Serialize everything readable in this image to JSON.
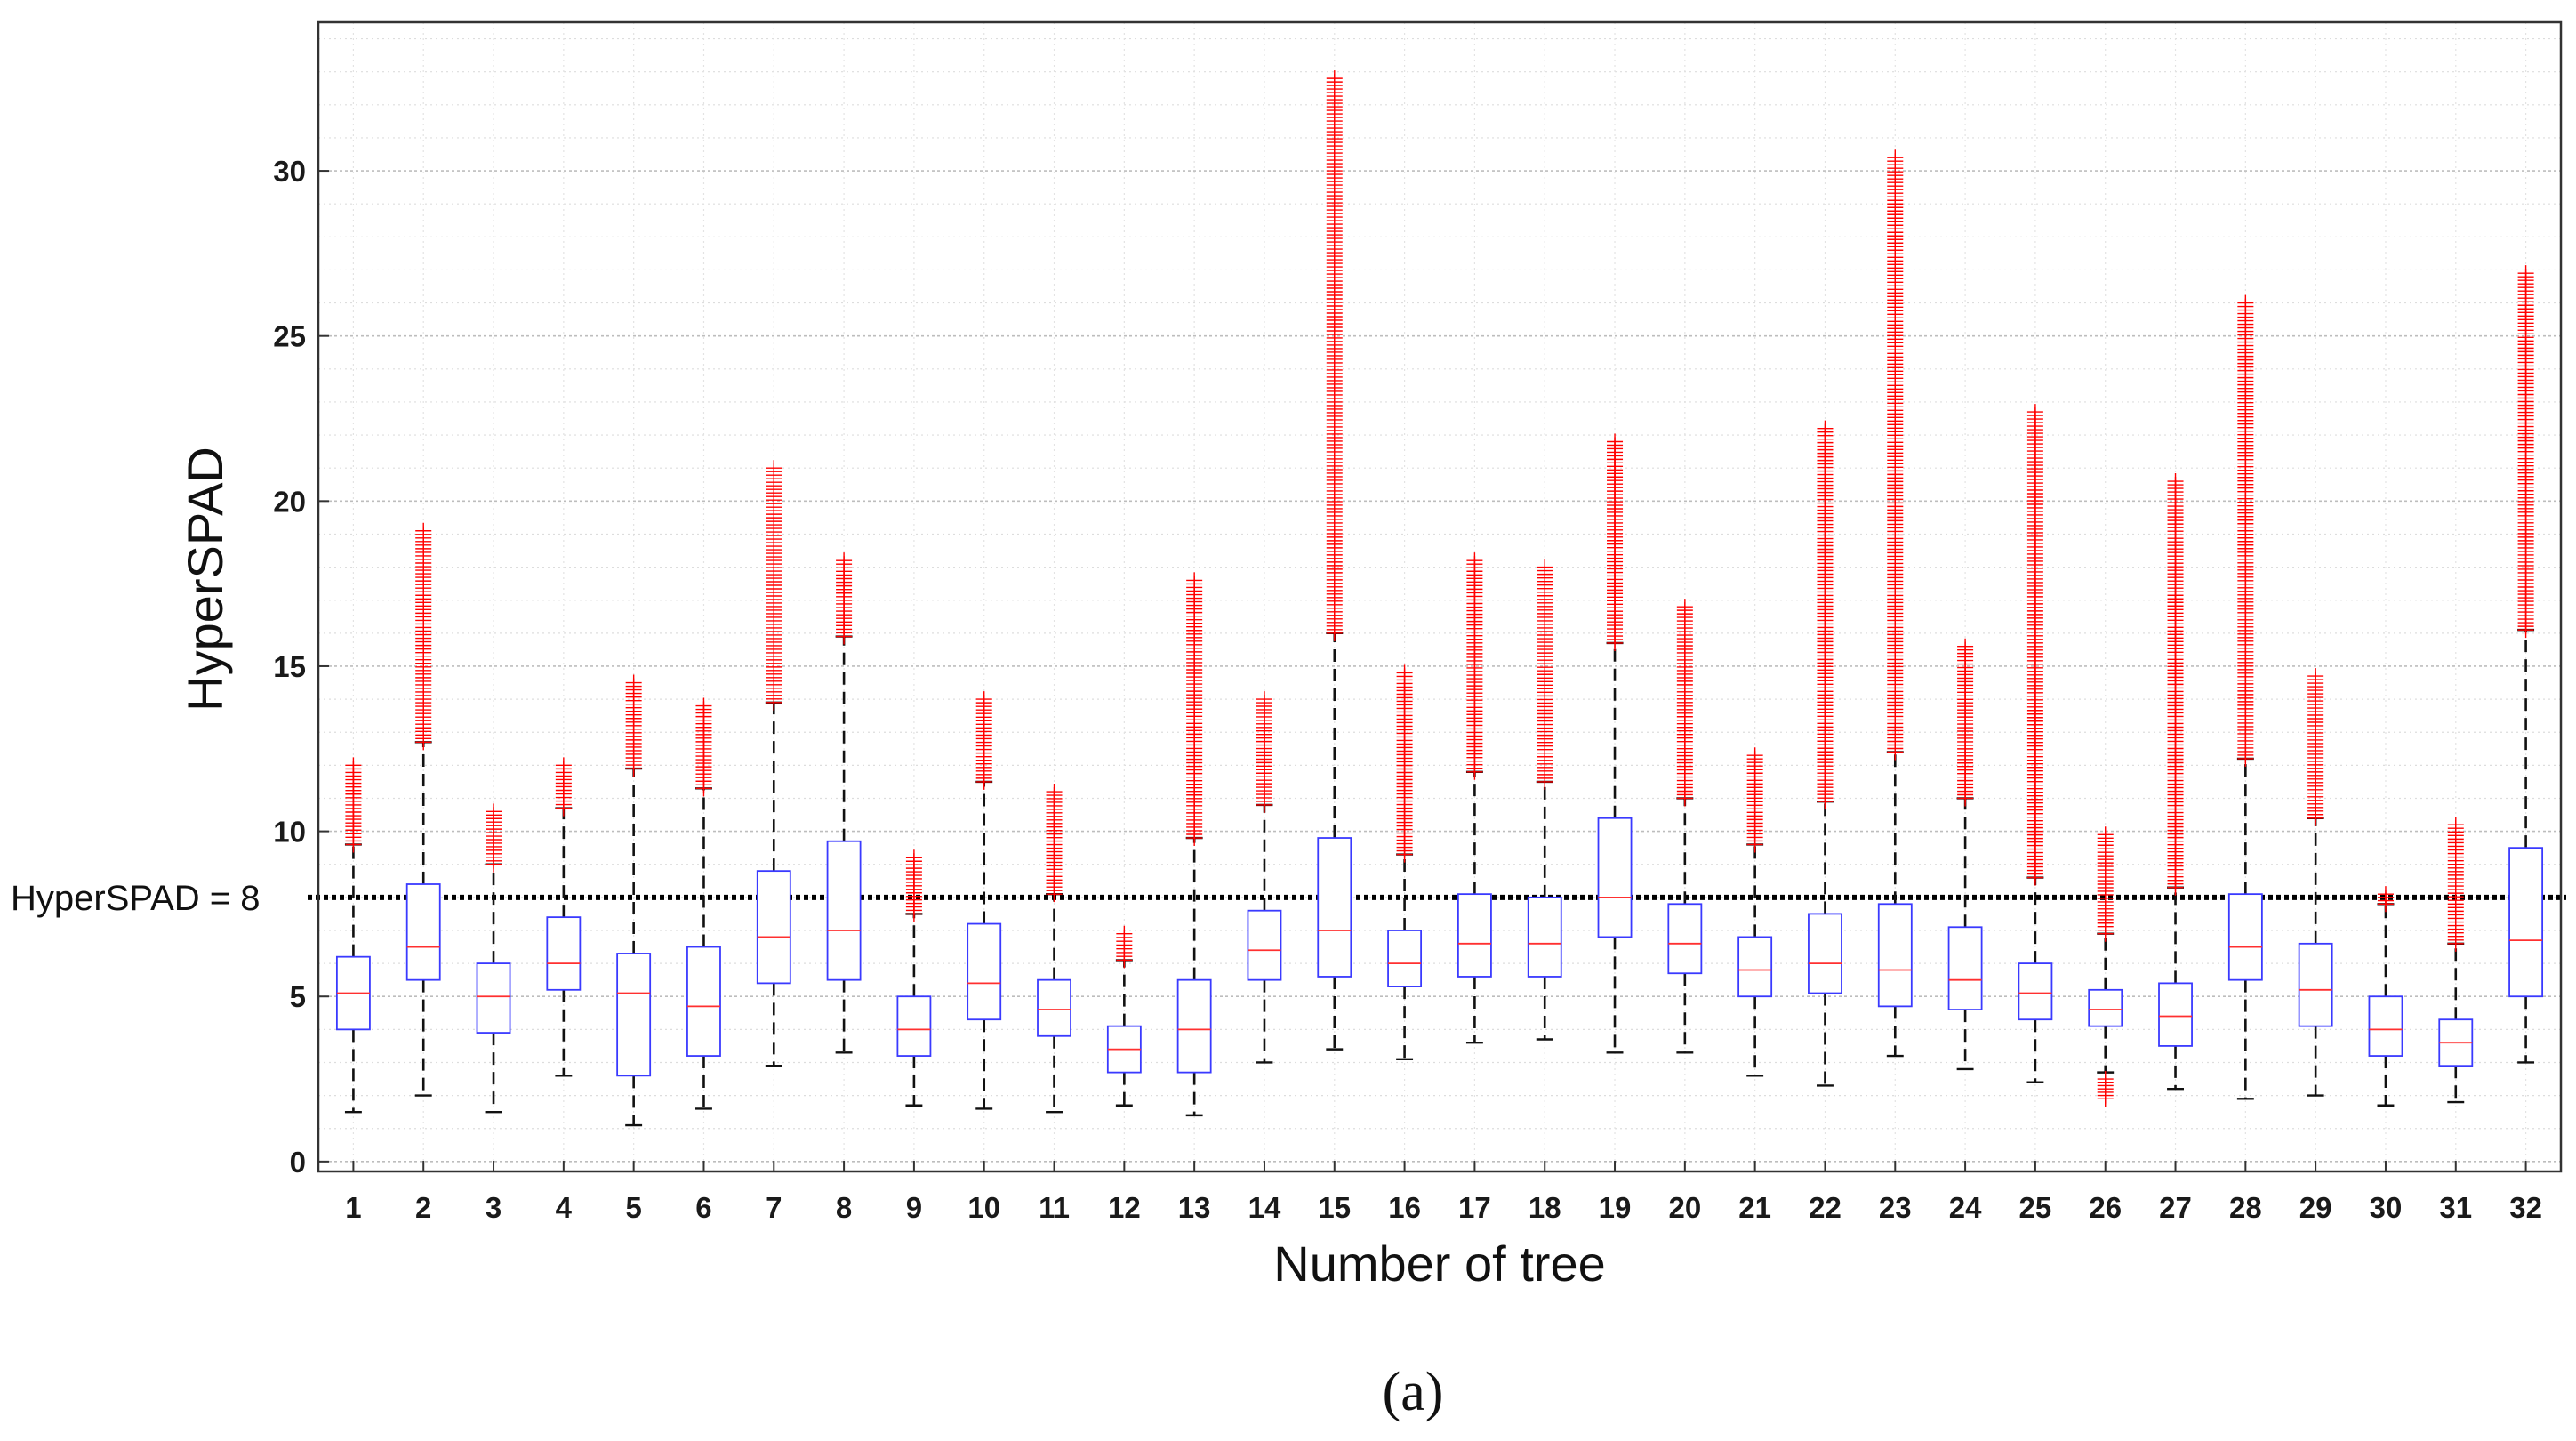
{
  "chart_data": {
    "type": "boxplot",
    "xlabel": "Number of tree",
    "ylabel": "HyperSPAD",
    "caption": "(a)",
    "ylim": [
      -0.3,
      34.5
    ],
    "yticks": [
      0,
      5,
      10,
      15,
      20,
      25,
      30
    ],
    "grid": "on (major and minor, dotted)",
    "reference_line": {
      "value": 8,
      "label": "HyperSPAD = 8",
      "style": "dotted black"
    },
    "colors": {
      "box": "#3a3aff",
      "median": "#ff3030",
      "outlier": "#ff0000",
      "whisker": "#111111",
      "grid": "#c8c8c8"
    },
    "categories": [
      "1",
      "2",
      "3",
      "4",
      "5",
      "6",
      "7",
      "8",
      "9",
      "10",
      "11",
      "12",
      "13",
      "14",
      "15",
      "16",
      "17",
      "18",
      "19",
      "20",
      "21",
      "22",
      "23",
      "24",
      "25",
      "26",
      "27",
      "28",
      "29",
      "30",
      "31",
      "32"
    ],
    "boxes": [
      {
        "tree": "1",
        "whisker_low": 1.5,
        "q1": 4.0,
        "median": 5.1,
        "q3": 6.2,
        "whisker_high": 9.6,
        "outliers_low": [],
        "outliers_high": [
          9.6,
          12.0
        ]
      },
      {
        "tree": "2",
        "whisker_low": 2.0,
        "q1": 5.5,
        "median": 6.5,
        "q3": 8.4,
        "whisker_high": 12.7,
        "outliers_low": [],
        "outliers_high": [
          12.7,
          19.1
        ]
      },
      {
        "tree": "3",
        "whisker_low": 1.5,
        "q1": 3.9,
        "median": 5.0,
        "q3": 6.0,
        "whisker_high": 9.0,
        "outliers_low": [],
        "outliers_high": [
          9.0,
          10.6
        ]
      },
      {
        "tree": "4",
        "whisker_low": 2.6,
        "q1": 5.2,
        "median": 6.0,
        "q3": 7.4,
        "whisker_high": 10.7,
        "outliers_low": [],
        "outliers_high": [
          10.7,
          12.0
        ]
      },
      {
        "tree": "5",
        "whisker_low": 1.1,
        "q1": 2.6,
        "median": 5.1,
        "q3": 6.3,
        "whisker_high": 11.9,
        "outliers_low": [],
        "outliers_high": [
          11.9,
          14.5
        ]
      },
      {
        "tree": "6",
        "whisker_low": 1.6,
        "q1": 3.2,
        "median": 4.7,
        "q3": 6.5,
        "whisker_high": 11.3,
        "outliers_low": [],
        "outliers_high": [
          11.3,
          13.8
        ]
      },
      {
        "tree": "7",
        "whisker_low": 2.9,
        "q1": 5.4,
        "median": 6.8,
        "q3": 8.8,
        "whisker_high": 13.9,
        "outliers_low": [],
        "outliers_high": [
          13.9,
          21.0
        ]
      },
      {
        "tree": "8",
        "whisker_low": 3.3,
        "q1": 5.5,
        "median": 7.0,
        "q3": 9.7,
        "whisker_high": 15.9,
        "outliers_low": [],
        "outliers_high": [
          15.9,
          18.2
        ]
      },
      {
        "tree": "9",
        "whisker_low": 1.7,
        "q1": 3.2,
        "median": 4.0,
        "q3": 5.0,
        "whisker_high": 7.5,
        "outliers_low": [],
        "outliers_high": [
          7.5,
          9.2
        ]
      },
      {
        "tree": "10",
        "whisker_low": 1.6,
        "q1": 4.3,
        "median": 5.4,
        "q3": 7.2,
        "whisker_high": 11.5,
        "outliers_low": [],
        "outliers_high": [
          11.5,
          14.0
        ]
      },
      {
        "tree": "11",
        "whisker_low": 1.5,
        "q1": 3.8,
        "median": 4.6,
        "q3": 5.5,
        "whisker_high": 8.1,
        "outliers_low": [],
        "outliers_high": [
          8.1,
          11.2
        ]
      },
      {
        "tree": "12",
        "whisker_low": 1.7,
        "q1": 2.7,
        "median": 3.4,
        "q3": 4.1,
        "whisker_high": 6.1,
        "outliers_low": [],
        "outliers_high": [
          6.1,
          6.9
        ]
      },
      {
        "tree": "13",
        "whisker_low": 1.4,
        "q1": 2.7,
        "median": 4.0,
        "q3": 5.5,
        "whisker_high": 9.8,
        "outliers_low": [],
        "outliers_high": [
          9.8,
          17.6
        ]
      },
      {
        "tree": "14",
        "whisker_low": 3.0,
        "q1": 5.5,
        "median": 6.4,
        "q3": 7.6,
        "whisker_high": 10.8,
        "outliers_low": [],
        "outliers_high": [
          10.8,
          14.0
        ]
      },
      {
        "tree": "15",
        "whisker_low": 3.4,
        "q1": 5.6,
        "median": 7.0,
        "q3": 9.8,
        "whisker_high": 16.0,
        "outliers_low": [],
        "outliers_high": [
          16.0,
          32.8
        ]
      },
      {
        "tree": "16",
        "whisker_low": 3.1,
        "q1": 5.3,
        "median": 6.0,
        "q3": 7.0,
        "whisker_high": 9.3,
        "outliers_low": [],
        "outliers_high": [
          9.3,
          14.8
        ]
      },
      {
        "tree": "17",
        "whisker_low": 3.6,
        "q1": 5.6,
        "median": 6.6,
        "q3": 8.1,
        "whisker_high": 11.8,
        "outliers_low": [],
        "outliers_high": [
          11.8,
          18.2
        ]
      },
      {
        "tree": "18",
        "whisker_low": 3.7,
        "q1": 5.6,
        "median": 6.6,
        "q3": 8.0,
        "whisker_high": 11.5,
        "outliers_low": [],
        "outliers_high": [
          11.5,
          18.0
        ]
      },
      {
        "tree": "19",
        "whisker_low": 3.3,
        "q1": 6.8,
        "median": 8.0,
        "q3": 10.4,
        "whisker_high": 15.7,
        "outliers_low": [],
        "outliers_high": [
          15.7,
          21.8
        ]
      },
      {
        "tree": "20",
        "whisker_low": 3.3,
        "q1": 5.7,
        "median": 6.6,
        "q3": 7.8,
        "whisker_high": 11.0,
        "outliers_low": [],
        "outliers_high": [
          11.0,
          16.8
        ]
      },
      {
        "tree": "21",
        "whisker_low": 2.6,
        "q1": 5.0,
        "median": 5.8,
        "q3": 6.8,
        "whisker_high": 9.6,
        "outliers_low": [],
        "outliers_high": [
          9.6,
          12.3
        ]
      },
      {
        "tree": "22",
        "whisker_low": 2.3,
        "q1": 5.1,
        "median": 6.0,
        "q3": 7.5,
        "whisker_high": 10.9,
        "outliers_low": [],
        "outliers_high": [
          10.9,
          22.2
        ]
      },
      {
        "tree": "23",
        "whisker_low": 3.2,
        "q1": 4.7,
        "median": 5.8,
        "q3": 7.8,
        "whisker_high": 12.4,
        "outliers_low": [],
        "outliers_high": [
          12.4,
          30.4
        ]
      },
      {
        "tree": "24",
        "whisker_low": 2.8,
        "q1": 4.6,
        "median": 5.5,
        "q3": 7.1,
        "whisker_high": 11.0,
        "outliers_low": [],
        "outliers_high": [
          11.0,
          15.6
        ]
      },
      {
        "tree": "25",
        "whisker_low": 2.4,
        "q1": 4.3,
        "median": 5.1,
        "q3": 6.0,
        "whisker_high": 8.6,
        "outliers_low": [],
        "outliers_high": [
          8.6,
          22.7
        ]
      },
      {
        "tree": "26",
        "whisker_low": 2.7,
        "q1": 4.1,
        "median": 4.6,
        "q3": 5.2,
        "whisker_high": 6.9,
        "outliers_low": [
          1.9,
          2.5
        ],
        "outliers_high": [
          6.9,
          9.9
        ]
      },
      {
        "tree": "27",
        "whisker_low": 2.2,
        "q1": 3.5,
        "median": 4.4,
        "q3": 5.4,
        "whisker_high": 8.3,
        "outliers_low": [],
        "outliers_high": [
          8.3,
          20.6
        ]
      },
      {
        "tree": "28",
        "whisker_low": 1.9,
        "q1": 5.5,
        "median": 6.5,
        "q3": 8.1,
        "whisker_high": 12.2,
        "outliers_low": [],
        "outliers_high": [
          12.2,
          26.0
        ]
      },
      {
        "tree": "29",
        "whisker_low": 2.0,
        "q1": 4.1,
        "median": 5.2,
        "q3": 6.6,
        "whisker_high": 10.4,
        "outliers_low": [],
        "outliers_high": [
          10.4,
          14.7
        ]
      },
      {
        "tree": "30",
        "whisker_low": 1.7,
        "q1": 3.2,
        "median": 4.0,
        "q3": 5.0,
        "whisker_high": 7.8,
        "outliers_low": [],
        "outliers_high": [
          7.8,
          8.1
        ]
      },
      {
        "tree": "31",
        "whisker_low": 1.8,
        "q1": 2.9,
        "median": 3.6,
        "q3": 4.3,
        "whisker_high": 6.6,
        "outliers_low": [],
        "outliers_high": [
          6.6,
          10.2
        ]
      },
      {
        "tree": "32",
        "whisker_low": 3.0,
        "q1": 5.0,
        "median": 6.7,
        "q3": 9.5,
        "whisker_high": 16.1,
        "outliers_low": [],
        "outliers_high": [
          16.1,
          26.9
        ]
      }
    ]
  }
}
